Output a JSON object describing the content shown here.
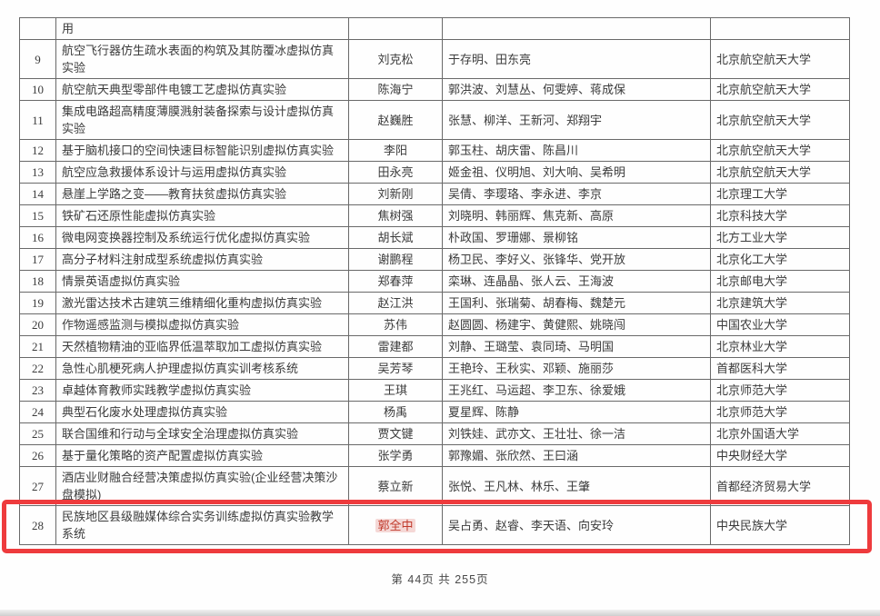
{
  "footer": {
    "text": "第 44页  共 255页"
  },
  "colors": {
    "highlight_box": "#ee3b3d",
    "leader_text": "#c0392b",
    "leader_bg": "#f5d8d6"
  },
  "table": {
    "rows": [
      {
        "num": "",
        "project": "用",
        "leader": "",
        "members": "",
        "university": ""
      },
      {
        "num": "9",
        "project": "航空飞行器仿生疏水表面的构筑及其防覆冰虚拟仿真实验",
        "leader": "刘克松",
        "members": "于存明、田东亮",
        "university": "北京航空航天大学"
      },
      {
        "num": "10",
        "project": "航空航天典型零部件电镀工艺虚拟仿真实验",
        "leader": "陈海宁",
        "members": "郭洪波、刘慧丛、何雯婷、蒋成保",
        "university": "北京航空航天大学"
      },
      {
        "num": "11",
        "project": "集成电路超高精度薄膜溅射装备探索与设计虚拟仿真实验",
        "leader": "赵巍胜",
        "members": "张慧、柳洋、王新河、郑翔宇",
        "university": "北京航空航天大学"
      },
      {
        "num": "12",
        "project": "基于脑机接口的空间快速目标智能识别虚拟仿真实验",
        "leader": "李阳",
        "members": "郭玉柱、胡庆雷、陈昌川",
        "university": "北京航空航天大学"
      },
      {
        "num": "13",
        "project": "航空应急救援体系设计与运用虚拟仿真实验",
        "leader": "田永亮",
        "members": "姬金祖、仪明旭、刘大响、吴希明",
        "university": "北京航空航天大学"
      },
      {
        "num": "14",
        "project": "悬崖上学路之变——教育扶贫虚拟仿真实验",
        "leader": "刘新刚",
        "members": "吴倩、李璎珞、李永进、李京",
        "university": "北京理工大学"
      },
      {
        "num": "15",
        "project": "铁矿石还原性能虚拟仿真实验",
        "leader": "焦树强",
        "members": "刘晓明、韩丽辉、焦克新、高原",
        "university": "北京科技大学"
      },
      {
        "num": "16",
        "project": "微电网变换器控制及系统运行优化虚拟仿真实验",
        "leader": "胡长斌",
        "members": "朴政国、罗珊娜、景柳铭",
        "university": "北方工业大学"
      },
      {
        "num": "17",
        "project": "高分子材料注射成型系统虚拟仿真实验",
        "leader": "谢鹏程",
        "members": "杨卫民、李好义、张锋华、党开放",
        "university": "北京化工大学"
      },
      {
        "num": "18",
        "project": "情景英语虚拟仿真实验",
        "leader": "郑春萍",
        "members": "栾琳、连晶晶、张人云、王海波",
        "university": "北京邮电大学"
      },
      {
        "num": "19",
        "project": "激光雷达技术古建筑三维精细化重构虚拟仿真实验",
        "leader": "赵江洪",
        "members": "王国利、张瑞菊、胡春梅、魏楚元",
        "university": "北京建筑大学"
      },
      {
        "num": "20",
        "project": "作物遥感监测与模拟虚拟仿真实验",
        "leader": "苏伟",
        "members": "赵圆圆、杨建宇、黄健熙、姚晓闯",
        "university": "中国农业大学"
      },
      {
        "num": "21",
        "project": "天然植物精油的亚临界低温萃取加工虚拟仿真实验",
        "leader": "雷建都",
        "members": "刘静、王璐莹、袁同琦、马明国",
        "university": "北京林业大学"
      },
      {
        "num": "22",
        "project": "急性心肌梗死病人护理虚拟仿真实训考核系统",
        "leader": "吴芳琴",
        "members": "王艳玲、王秋实、邓颖、施丽莎",
        "university": "首都医科大学"
      },
      {
        "num": "23",
        "project": "卓越体育教师实践教学虚拟仿真实验",
        "leader": "王琪",
        "members": "王兆红、马运超、李卫东、徐爱娥",
        "university": "北京师范大学"
      },
      {
        "num": "24",
        "project": "典型石化废水处理虚拟仿真实验",
        "leader": "杨禹",
        "members": "夏星辉、陈静",
        "university": "北京师范大学"
      },
      {
        "num": "25",
        "project": "联合国维和行动与全球安全治理虚拟仿真实验",
        "leader": "贾文键",
        "members": "刘铁娃、武亦文、王壮壮、徐一洁",
        "university": "北京外国语大学"
      },
      {
        "num": "26",
        "project": "基于量化策略的资产配置虚拟仿真实验",
        "leader": "张学勇",
        "members": "郭豫媚、张欣然、王曰涵",
        "university": "中央财经大学"
      },
      {
        "num": "27",
        "project": "酒店业财融合经营决策虚拟仿真实验(企业经营决策沙盘模拟)",
        "leader": "蔡立新",
        "members": "张悦、王凡林、林乐、王肇",
        "university": "首都经济贸易大学"
      },
      {
        "num": "28",
        "project": "民族地区县级融媒体综合实务训练虚拟仿真实验教学系统",
        "leader": "郭全中",
        "members": "吴占勇、赵睿、李天语、向安玲",
        "university": "中央民族大学",
        "highlighted": true
      }
    ]
  }
}
